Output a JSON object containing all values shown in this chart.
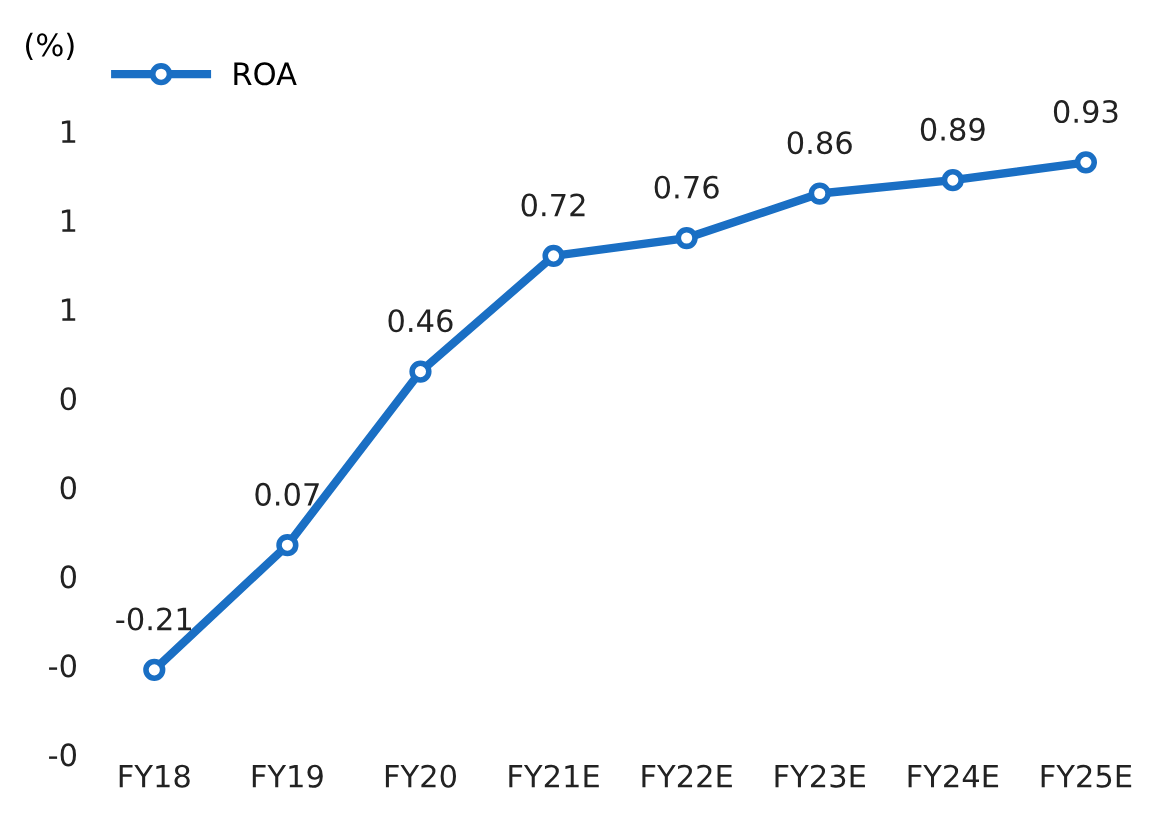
{
  "chart_data": {
    "type": "line",
    "ylabel": "(%)",
    "categories": [
      "FY18",
      "FY19",
      "FY20",
      "FY21E",
      "FY22E",
      "FY23E",
      "FY24E",
      "FY25E"
    ],
    "series": [
      {
        "name": "ROA",
        "color": "#1a6fc4",
        "values": [
          -0.21,
          0.07,
          0.46,
          0.72,
          0.76,
          0.86,
          0.89,
          0.93
        ]
      }
    ],
    "ylim": [
      -0.4,
      1.0
    ],
    "yticks": [
      {
        "value": -0.4,
        "label": "-0"
      },
      {
        "value": -0.2,
        "label": "-0"
      },
      {
        "value": 0.0,
        "label": "0"
      },
      {
        "value": 0.2,
        "label": "0"
      },
      {
        "value": 0.4,
        "label": "0"
      },
      {
        "value": 0.6,
        "label": "1"
      },
      {
        "value": 0.8,
        "label": "1"
      },
      {
        "value": 1.0,
        "label": "1"
      }
    ],
    "data_labels": true,
    "legend": "top left",
    "marker": "circle",
    "line_style": "solid",
    "grid": false
  }
}
